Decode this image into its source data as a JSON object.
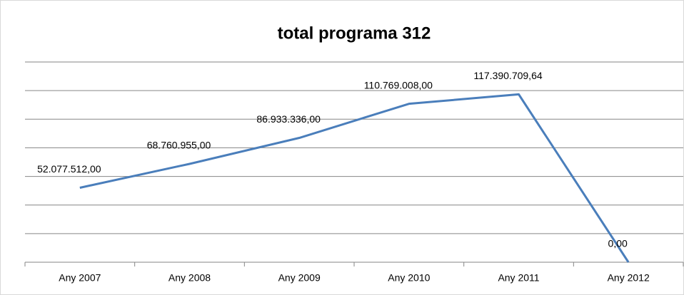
{
  "chart_data": {
    "type": "line",
    "title": "total programa 312",
    "categories": [
      "Any 2007",
      "Any 2008",
      "Any 2009",
      "Any 2010",
      "Any 2011",
      "Any 2012"
    ],
    "series": [
      {
        "color": "#4a7ebb",
        "values": [
          52077512,
          68760955,
          86933336,
          110769008,
          117390709.64,
          0
        ],
        "value_labels": [
          "52.077.512,00",
          "68.760.955,00",
          "86.933.336,00",
          "110.769.008,00",
          "117.390.709,64",
          "0,00"
        ]
      }
    ],
    "ylim": [
      0,
      140000000
    ],
    "yticks": [
      0,
      20000000,
      40000000,
      60000000,
      80000000,
      100000000,
      120000000,
      140000000
    ],
    "grid": true
  }
}
